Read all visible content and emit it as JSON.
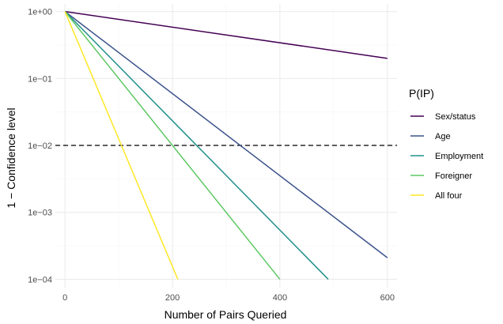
{
  "chart_data": {
    "type": "line",
    "xlabel": "Number of Pairs Queried",
    "ylabel": "1 − Confidence level",
    "xlim": [
      -18,
      618
    ],
    "x_ticks": [
      0,
      200,
      400,
      600
    ],
    "x_tick_labels": [
      "0",
      "200",
      "400",
      "600"
    ],
    "y_scale": "log10",
    "ylim": [
      7.5e-05,
      1.3
    ],
    "y_ticks": [
      1,
      0.1,
      0.01,
      0.001,
      0.0001
    ],
    "y_tick_labels": [
      "1e+00",
      "1e−01",
      "1e−02",
      "1e−03",
      "1e−04"
    ],
    "grid": true,
    "reference_line": {
      "y": 0.01,
      "style": "dashed",
      "color": "#000000"
    },
    "legend": {
      "title": "P(IP)",
      "position": "right"
    },
    "series": [
      {
        "name": "Sex/status",
        "color": "#440154",
        "x": [
          0,
          600
        ],
        "y": [
          1,
          0.2
        ]
      },
      {
        "name": "Age",
        "color": "#3B528B",
        "x": [
          0,
          600
        ],
        "y": [
          1,
          0.00021
        ]
      },
      {
        "name": "Employment",
        "color": "#21908C",
        "x": [
          0,
          490
        ],
        "y": [
          1,
          0.0001
        ]
      },
      {
        "name": "Foreigner",
        "color": "#5DC863",
        "x": [
          0,
          400
        ],
        "y": [
          1,
          0.0001
        ]
      },
      {
        "name": "All four",
        "color": "#FDE725",
        "x": [
          0,
          210
        ],
        "y": [
          1,
          0.0001
        ]
      }
    ]
  }
}
